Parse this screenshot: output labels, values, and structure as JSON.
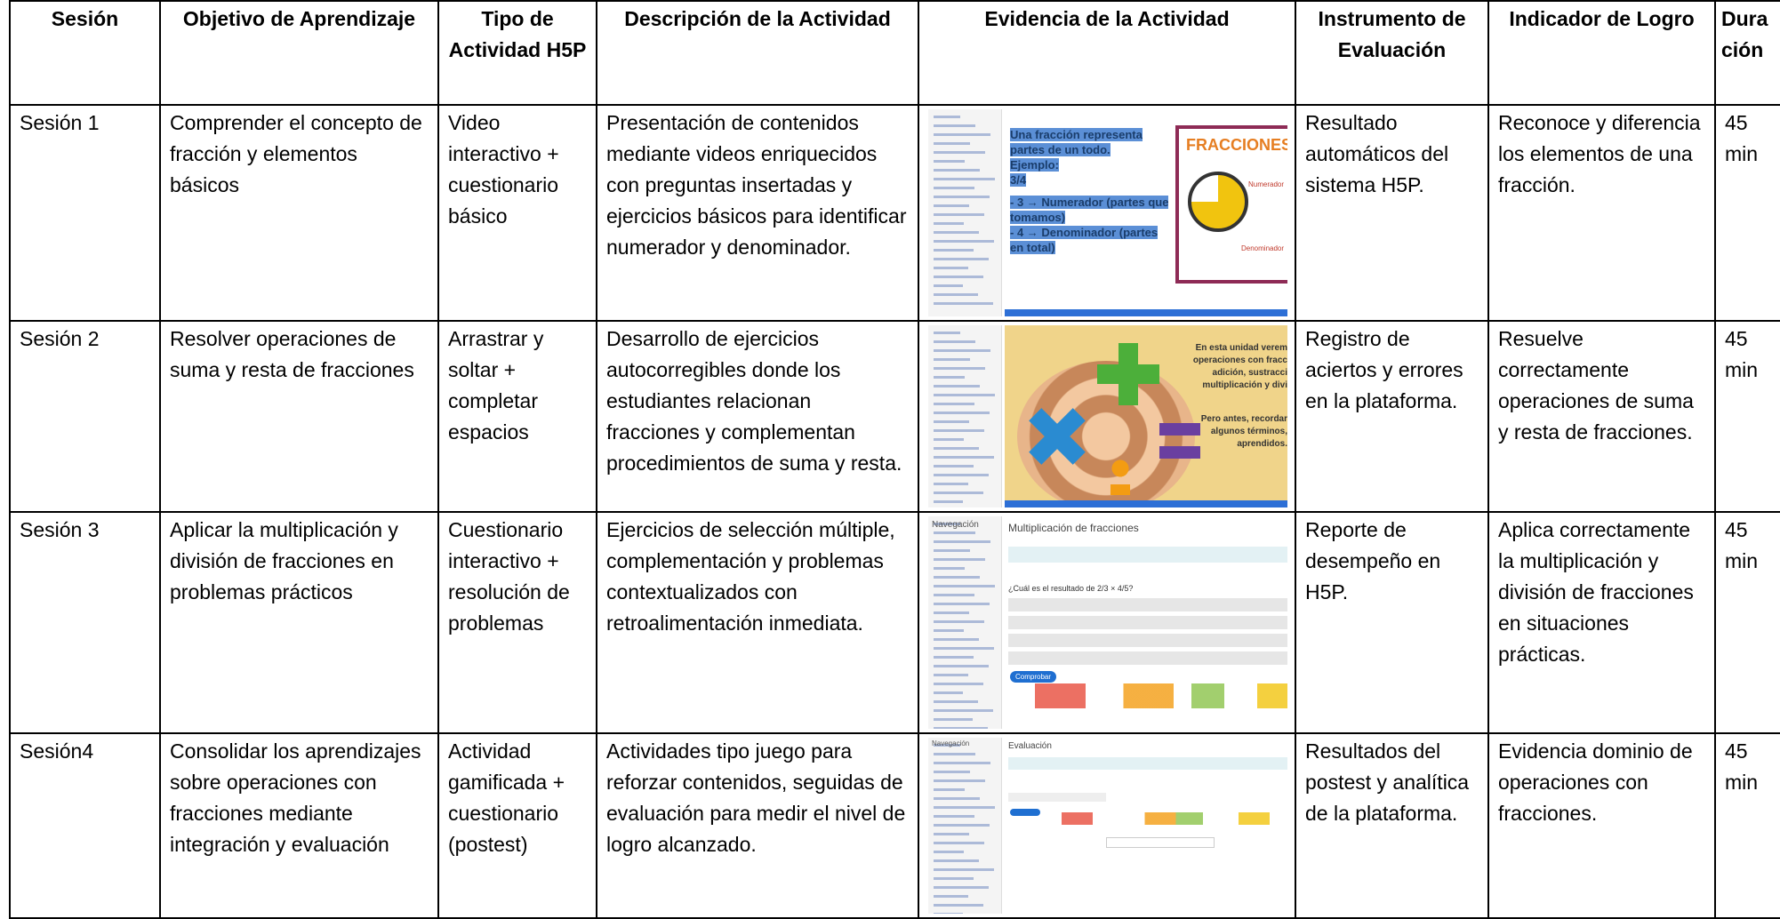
{
  "table": {
    "headers": [
      "Sesión",
      "Objetivo de Aprendizaje",
      "Tipo de Actividad H5P",
      "Descripción de la Actividad",
      "Evidencia de la Actividad",
      "Instrumento de Evaluación",
      "Indicador de Logro",
      "Duración"
    ],
    "rows": [
      {
        "session": "Sesión 1",
        "objective": "Comprender el concepto de fracción y elementos básicos",
        "activity_type": "Video interactivo + cuestionario básico",
        "description": "Presentación de contenidos mediante videos enriquecidos con preguntas insertadas y ejercicios básicos para identificar numerador y denominador.",
        "evidence": {
          "texts": [
            "Una fracción representa partes de un todo.",
            "Ejemplo:",
            "3/4",
            "- 3 → Numerador (partes que tomamos)",
            "- 4 → Denominador (partes en total)",
            "FRACCIONES",
            "Numerador",
            "Denominador"
          ]
        },
        "instrument": "Resultado automáticos del sistema H5P.",
        "indicator": "Reconoce y diferencia los elementos de una fracción.",
        "duration": "45 min"
      },
      {
        "session": "Sesión 2",
        "objective": "Resolver operaciones de suma y resta de fracciones",
        "activity_type": "Arrastrar y soltar + completar espacios",
        "description": "Desarrollo de ejercicios autocorregibles donde los estudiantes relacionan fracciones y complementan procedimientos de suma y resta.",
        "evidence": {
          "texts": [
            "En esta unidad verem",
            "operaciones con fracc",
            "adición, sustracci",
            "multiplicación y divi",
            "Pero antes, recordar",
            "algunos términos,",
            "aprendidos."
          ]
        },
        "instrument": "Registro de aciertos y errores en la plataforma.",
        "indicator": "Resuelve correctamente operaciones de suma y resta de fracciones.",
        "duration": "45 min"
      },
      {
        "session": "Sesión 3",
        "objective": "Aplicar la multiplicación y división de fracciones en problemas prácticos",
        "activity_type": "Cuestionario interactivo + resolución de problemas",
        "description": "Ejercicios de selección múltiple, complementación y problemas contextualizados con retroalimentación inmediata.",
        "evidence": {
          "texts": [
            "Navegación",
            "Multiplicación de fracciones",
            "¿Cuál es el resultado de 2/3 × 4/5?",
            "Comprobar"
          ]
        },
        "instrument": "Reporte de desempeño en H5P.",
        "indicator": "Aplica correctamente la multiplicación y división de fracciones en situaciones prácticas.",
        "duration": "45 min"
      },
      {
        "session": "Sesión4",
        "objective": "Consolidar los aprendizajes sobre operaciones con fracciones mediante integración y evaluación",
        "activity_type": "Actividad gamificada + cuestionario (postest)",
        "description": "Actividades tipo juego para reforzar contenidos, seguidas de evaluación para medir el nivel de logro alcanzado.",
        "evidence": {
          "texts": [
            "Navegación",
            "Evaluación"
          ]
        },
        "instrument": "Resultados del postest y analítica de la plataforma.",
        "indicator": "Evidencia dominio de operaciones con fracciones.",
        "duration": "45 min"
      }
    ]
  }
}
